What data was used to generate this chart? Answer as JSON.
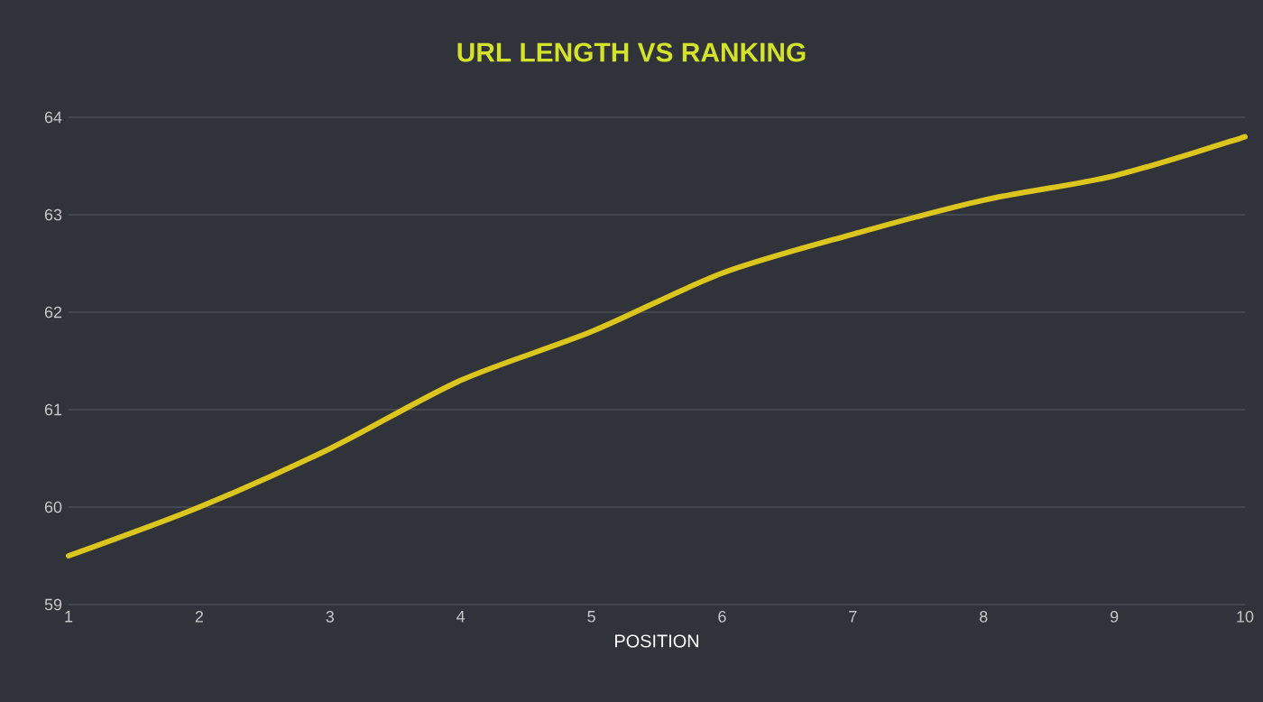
{
  "chart_data": {
    "type": "line",
    "title": "URL LENGTH VS RANKING",
    "xlabel": "POSITION",
    "x": [
      1,
      2,
      3,
      4,
      5,
      6,
      7,
      8,
      9,
      10
    ],
    "series": [
      {
        "color": "#dcc61e",
        "values": [
          59.5,
          60.0,
          60.6,
          61.3,
          61.8,
          62.4,
          62.8,
          63.15,
          63.4,
          63.8
        ]
      }
    ],
    "xlim": [
      1,
      10
    ],
    "xticks": [
      1,
      2,
      3,
      4,
      5,
      6,
      7,
      8,
      9,
      10
    ],
    "ylim": [
      59,
      64
    ],
    "yticks": [
      59,
      60,
      61,
      62,
      63,
      64
    ],
    "grid": "y",
    "marker": "none",
    "line_style": "solid"
  }
}
